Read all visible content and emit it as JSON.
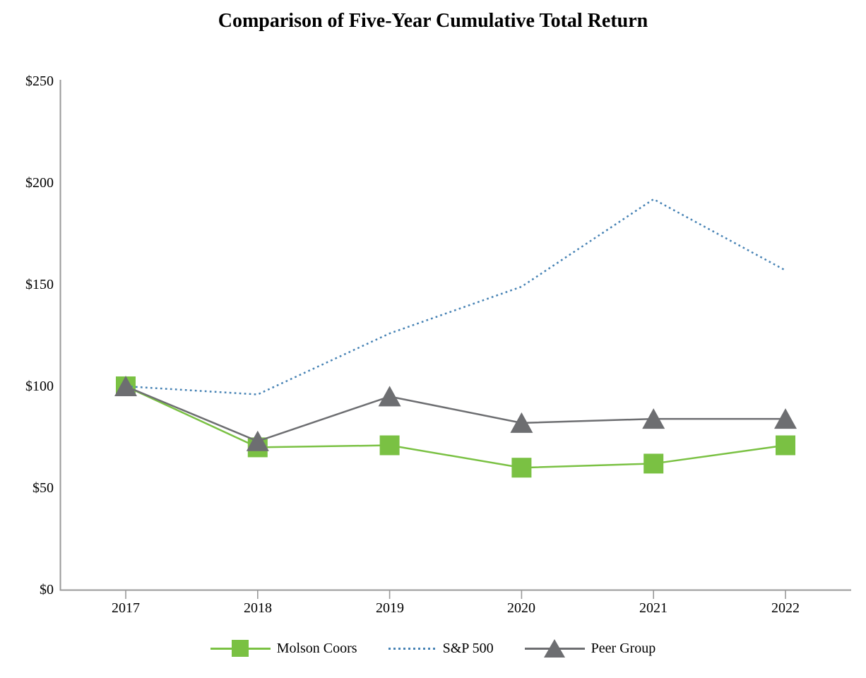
{
  "chart_data": {
    "type": "line",
    "title": "Comparison of Five-Year Cumulative Total Return",
    "categories": [
      "2017",
      "2018",
      "2019",
      "2020",
      "2021",
      "2022"
    ],
    "series": [
      {
        "name": "Molson Coors",
        "color": "#7ac143",
        "marker": "square",
        "line_style": "solid",
        "values": [
          100,
          70,
          71,
          60,
          62,
          71
        ]
      },
      {
        "name": "S&P 500",
        "color": "#4682b4",
        "marker": "none",
        "line_style": "dotted",
        "values": [
          100,
          96,
          126,
          149,
          192,
          157
        ]
      },
      {
        "name": "Peer Group",
        "color": "#6d6e71",
        "marker": "triangle",
        "line_style": "solid",
        "values": [
          100,
          73,
          95,
          82,
          84,
          84
        ]
      }
    ],
    "ylabel": "",
    "xlabel": "",
    "ylim": [
      0,
      250
    ],
    "y_tick_labels": [
      "$0",
      "$50",
      "$100",
      "$150",
      "$200",
      "$250"
    ],
    "x_tick_labels": [
      "2017",
      "2018",
      "2019",
      "2020",
      "2021",
      "2022"
    ],
    "axis_color": "#999999",
    "grid": "off",
    "legend_position": "bottom"
  }
}
